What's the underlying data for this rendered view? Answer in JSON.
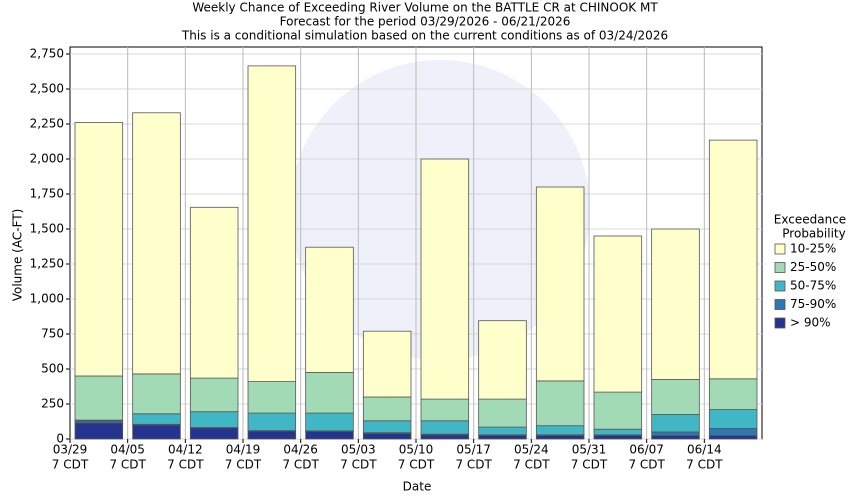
{
  "chart_data": {
    "type": "stacked_bar",
    "title": "Weekly Chance of Exceeding River Volume on the BATTLE CR at CHINOOK MT",
    "subtitle": "Forecast for the period 03/29/2026 - 06/21/2026",
    "subtitle2": "This is a conditional simulation based on the current conditions as of 03/24/2026",
    "x_label": "Date",
    "y_label": "Volume (AC-FT)",
    "legend_title": [
      "Exceedance",
      "Probability"
    ],
    "legend_position": "right",
    "grid": true,
    "categories": [
      [
        "03/29",
        "7 CDT"
      ],
      [
        "04/05",
        "7 CDT"
      ],
      [
        "04/12",
        "7 CDT"
      ],
      [
        "04/19",
        "7 CDT"
      ],
      [
        "04/26",
        "7 CDT"
      ],
      [
        "05/03",
        "7 CDT"
      ],
      [
        "05/10",
        "7 CDT"
      ],
      [
        "05/17",
        "7 CDT"
      ],
      [
        "05/24",
        "7 CDT"
      ],
      [
        "05/31",
        "7 CDT"
      ],
      [
        "06/07",
        "7 CDT"
      ],
      [
        "06/14",
        "7 CDT"
      ]
    ],
    "series": [
      {
        "name": "> 90%",
        "color": "#24348f",
        "values": [
          115,
          100,
          80,
          57,
          55,
          40,
          30,
          25,
          25,
          25,
          25,
          25
        ]
      },
      {
        "name": "75-90%",
        "color": "#2b78b4",
        "values": [
          15,
          5,
          2,
          3,
          3,
          5,
          5,
          5,
          5,
          5,
          25,
          50
        ]
      },
      {
        "name": "50-75%",
        "color": "#41b6c4",
        "values": [
          5,
          75,
          113,
          125,
          127,
          85,
          95,
          55,
          65,
          40,
          125,
          135
        ]
      },
      {
        "name": "25-50%",
        "color": "#a1dab4",
        "values": [
          315,
          285,
          240,
          225,
          290,
          170,
          155,
          200,
          320,
          265,
          250,
          220
        ]
      },
      {
        "name": "10-25%",
        "color": "#ffffcc",
        "values": [
          1810,
          1865,
          1220,
          2255,
          895,
          470,
          1715,
          560,
          1385,
          1115,
          1075,
          1705
        ]
      }
    ],
    "ylim": [
      0,
      2800
    ],
    "yticks": [
      0,
      250,
      500,
      750,
      {
        "value": 1000,
        "label": "1,000"
      },
      {
        "value": 1250,
        "label": "1,250"
      },
      {
        "value": 1500,
        "label": "1,500"
      },
      {
        "value": 1750,
        "label": "1,750"
      },
      {
        "value": 2000,
        "label": "2,000"
      },
      {
        "value": 2250,
        "label": "2,250"
      },
      {
        "value": 2500,
        "label": "2,500"
      },
      {
        "value": 2750,
        "label": "2,750"
      }
    ]
  }
}
